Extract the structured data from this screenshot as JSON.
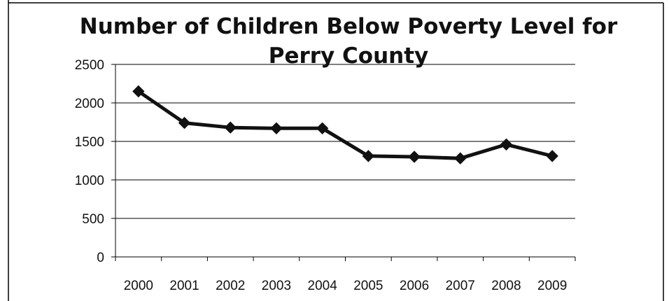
{
  "chart_data": {
    "type": "line",
    "title_lines": [
      "Number of Children Below Poverty Level for",
      "Perry County"
    ],
    "xlabel": "",
    "ylabel": "",
    "categories": [
      "2000",
      "2001",
      "2002",
      "2003",
      "2004",
      "2005",
      "2006",
      "2007",
      "2008",
      "2009"
    ],
    "series": [
      {
        "values": [
          2150,
          1740,
          1680,
          1670,
          1670,
          1310,
          1300,
          1280,
          1460,
          1310
        ]
      }
    ],
    "ylim": [
      0,
      2500
    ],
    "yticks": [
      "0",
      "500",
      "1000",
      "1500",
      "2000",
      "2500"
    ],
    "grid": true,
    "legend": "none",
    "colors": {
      "line": "#111111",
      "marker": "#111111",
      "grid": "#000000",
      "frame": "#000000"
    }
  }
}
